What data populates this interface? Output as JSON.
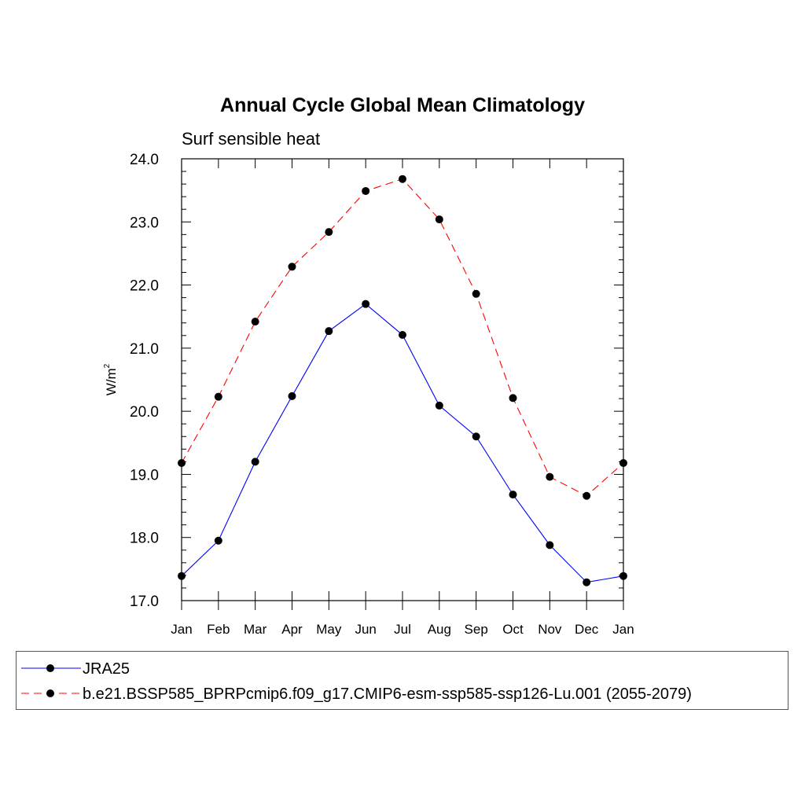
{
  "chart_data": {
    "type": "line",
    "title": "Annual Cycle Global Mean Climatology",
    "subtitle": "Surf sensible heat",
    "ylabel": "W/m",
    "ylabel_sup": "2",
    "xlabel": "",
    "categories": [
      "Jan",
      "Feb",
      "Mar",
      "Apr",
      "May",
      "Jun",
      "Jul",
      "Aug",
      "Sep",
      "Oct",
      "Nov",
      "Dec",
      "Jan"
    ],
    "ylim": [
      17.0,
      24.0
    ],
    "yticks": [
      "17.0",
      "18.0",
      "19.0",
      "20.0",
      "21.0",
      "22.0",
      "23.0",
      "24.0"
    ],
    "grid": false,
    "legend_position": "bottom",
    "series": [
      {
        "name": "JRA25",
        "color": "#0000ff",
        "dash": "solid",
        "values": [
          17.39,
          17.95,
          19.2,
          20.24,
          21.27,
          21.7,
          21.21,
          20.09,
          19.6,
          18.68,
          17.88,
          17.29,
          17.39
        ]
      },
      {
        "name": "b.e21.BSSP585_BPRPcmip6.f09_g17.CMIP6-esm-ssp585-ssp126-Lu.001 (2055-2079)",
        "color": "#ff0000",
        "dash": "dashed",
        "values": [
          19.18,
          20.23,
          21.42,
          22.29,
          22.84,
          23.49,
          23.68,
          23.04,
          21.86,
          20.21,
          18.96,
          18.66,
          19.18
        ]
      }
    ]
  }
}
